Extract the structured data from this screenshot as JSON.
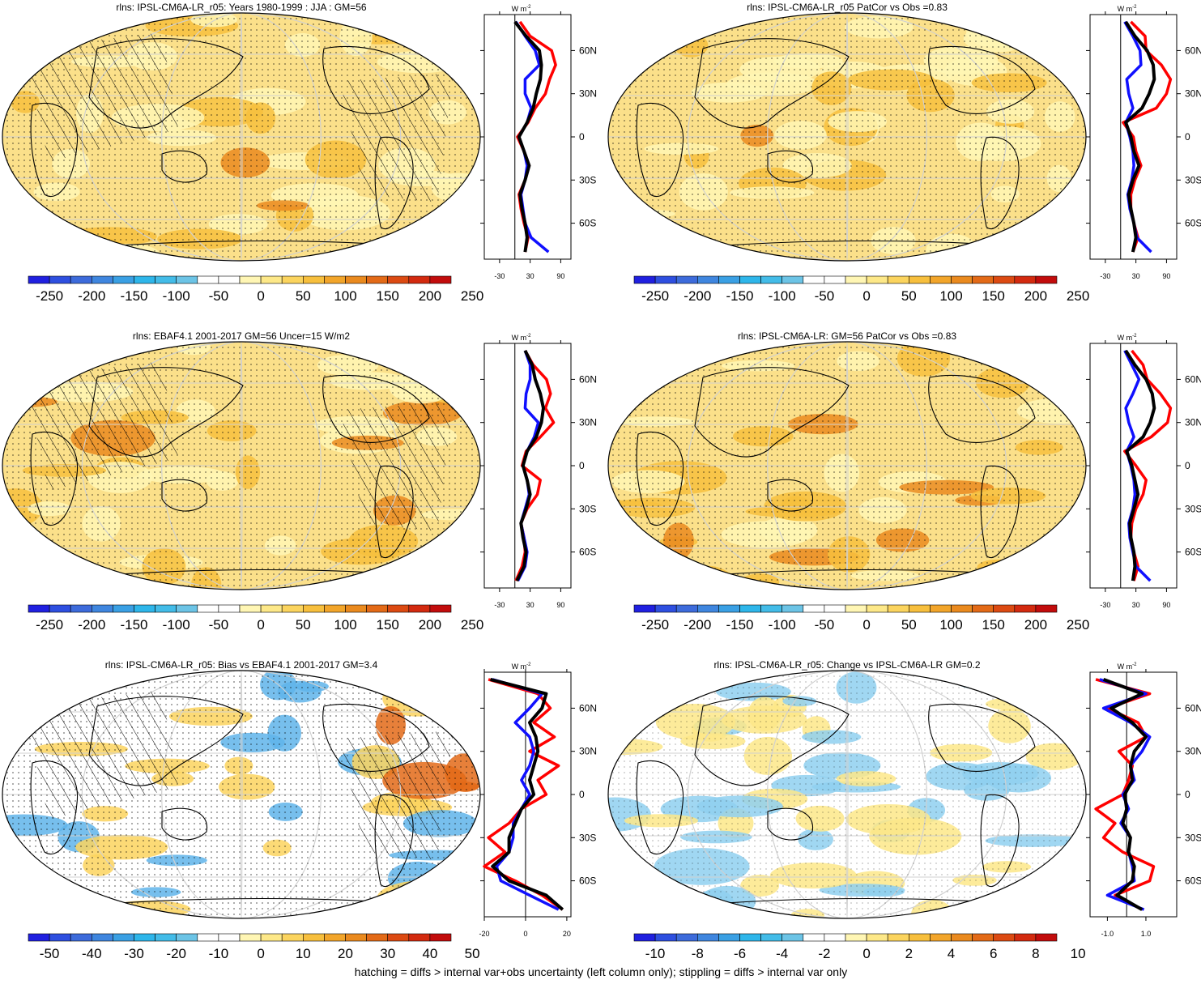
{
  "colorbar_colors": {
    "neg": [
      "#2020e0",
      "#2e4fe0",
      "#3d6bdb",
      "#3f86df",
      "#3aa0e4",
      "#2eb6ea",
      "#43bce8",
      "#6cc4e6"
    ],
    "zero": [
      "#ffffff",
      "#ffffff"
    ],
    "pos": [
      "#fff6b4",
      "#fde888",
      "#fbd45e",
      "#f7bf3d",
      "#f2a52a",
      "#ea8a1e",
      "#e36a17",
      "#dc4a12",
      "#d32a0f",
      "#c20c0c"
    ]
  },
  "map_fill": "#fbe08a",
  "line_colors": {
    "obs": "#ff0000",
    "model": "#1010ff",
    "ens": "#000000"
  },
  "footnote": "hatching = diffs > internal var+obs uncertainty (left column only); stippling = diffs > internal var only",
  "profile_unit": "W m",
  "profile_unit_exp": "-2",
  "lat_labels": [
    "60N",
    "30N",
    "0",
    "30S",
    "60S"
  ],
  "chart_data": [
    {
      "type": "heatmap",
      "title": "rlns: IPSL-CM6A-LR_r05: Years 1980-1999 : JJA : GM=56",
      "colorbar_labels": [
        "-250",
        "-200",
        "-150",
        "-100",
        "-50",
        "0",
        "50",
        "100",
        "150",
        "200",
        "250"
      ],
      "hatched": true,
      "profile": {
        "xticks": [
          "-30",
          "30",
          "90"
        ],
        "xlim": [
          -60,
          110
        ],
        "lat": [
          80,
          70,
          60,
          50,
          40,
          30,
          20,
          10,
          0,
          -10,
          -20,
          -30,
          -40,
          -50,
          -60,
          -70,
          -80
        ],
        "series": [
          {
            "color": "red",
            "values": [
              10,
              30,
              72,
              80,
              68,
              60,
              40,
              26,
              5,
              18,
              28,
              20,
              8,
              12,
              18,
              26,
              20
            ]
          },
          {
            "color": "blue",
            "values": [
              2,
              20,
              40,
              48,
              20,
              20,
              32,
              24,
              8,
              18,
              24,
              20,
              12,
              16,
              20,
              32,
              66
            ]
          },
          {
            "color": "black",
            "values": [
              0,
              22,
              48,
              52,
              50,
              42,
              36,
              24,
              8,
              18,
              28,
              20,
              10,
              14,
              20,
              24,
              20
            ]
          }
        ]
      }
    },
    {
      "type": "heatmap",
      "title": "rlns: IPSL-CM6A-LR_r05 PatCor vs Obs =0.83",
      "colorbar_labels": [
        "-250",
        "-200",
        "-150",
        "-100",
        "-50",
        "0",
        "50",
        "100",
        "150",
        "200",
        "250"
      ],
      "hatched": false,
      "profile": {
        "xticks": [
          "-30",
          "30",
          "90"
        ],
        "xlim": [
          -60,
          110
        ],
        "lat": [
          80,
          70,
          60,
          50,
          40,
          30,
          20,
          10,
          0,
          -10,
          -20,
          -30,
          -40,
          -50,
          -60,
          -70,
          -80
        ],
        "series": [
          {
            "color": "red",
            "values": [
              20,
              48,
              50,
              80,
              98,
              90,
              70,
              5,
              25,
              30,
              40,
              28,
              20,
              20,
              26,
              34,
              24
            ]
          },
          {
            "color": "blue",
            "values": [
              8,
              24,
              38,
              40,
              12,
              16,
              24,
              10,
              18,
              24,
              26,
              22,
              14,
              18,
              26,
              32,
              60
            ]
          },
          {
            "color": "black",
            "values": [
              10,
              28,
              52,
              64,
              66,
              56,
              42,
              10,
              20,
              26,
              36,
              24,
              16,
              20,
              26,
              30,
              24
            ]
          }
        ]
      }
    },
    {
      "type": "heatmap",
      "title": "rlns: EBAF4.1 2001-2017 GM=56 Uncer=15 W/m2",
      "colorbar_labels": [
        "-250",
        "-200",
        "-150",
        "-100",
        "-50",
        "0",
        "50",
        "100",
        "150",
        "200",
        "250"
      ],
      "hatched": true,
      "profile": {
        "xticks": [
          "-30",
          "30",
          "90"
        ],
        "xlim": [
          -60,
          110
        ],
        "lat": [
          80,
          70,
          60,
          50,
          40,
          30,
          20,
          10,
          0,
          -10,
          -20,
          -30,
          -40,
          -50,
          -60,
          -70,
          -80
        ],
        "series": [
          {
            "color": "red",
            "values": [
              20,
              36,
              62,
              70,
              60,
              76,
              50,
              22,
              14,
              50,
              44,
              24,
              12,
              18,
              20,
              14,
              2
            ]
          },
          {
            "color": "blue",
            "values": [
              20,
              30,
              30,
              22,
              20,
              46,
              38,
              24,
              16,
              24,
              28,
              20,
              12,
              18,
              24,
              20,
              6
            ]
          },
          {
            "color": "black",
            "values": [
              20,
              34,
              40,
              50,
              56,
              52,
              42,
              24,
              16,
              24,
              30,
              22,
              12,
              16,
              22,
              18,
              4
            ]
          }
        ]
      }
    },
    {
      "type": "heatmap",
      "title": "rlns: IPSL-CM6A-LR: GM=56 PatCor vs Obs =0.83",
      "colorbar_labels": [
        "-250",
        "-200",
        "-150",
        "-100",
        "-50",
        "0",
        "50",
        "100",
        "150",
        "200",
        "250"
      ],
      "hatched": false,
      "profile": {
        "xticks": [
          "-30",
          "30",
          "90"
        ],
        "xlim": [
          -60,
          110
        ],
        "lat": [
          80,
          70,
          60,
          50,
          40,
          30,
          20,
          10,
          0,
          -10,
          -20,
          -30,
          -40,
          -50,
          -60,
          -70,
          -80
        ],
        "series": [
          {
            "color": "red",
            "values": [
              22,
              44,
              52,
              78,
              98,
              92,
              60,
              8,
              30,
              50,
              44,
              30,
              22,
              20,
              26,
              34,
              26
            ]
          },
          {
            "color": "blue",
            "values": [
              8,
              22,
              36,
              24,
              10,
              16,
              26,
              12,
              20,
              26,
              28,
              24,
              16,
              18,
              24,
              30,
              58
            ]
          },
          {
            "color": "black",
            "values": [
              10,
              28,
              50,
              62,
              66,
              58,
              44,
              12,
              22,
              28,
              34,
              26,
              18,
              20,
              26,
              28,
              24
            ]
          }
        ]
      }
    },
    {
      "type": "heatmap",
      "title": "rlns: IPSL-CM6A-LR_r05: Bias vs EBAF4.1 2001-2017 GM=3.4",
      "colorbar_labels": [
        "-50",
        "-40",
        "-30",
        "-20",
        "-10",
        "0",
        "10",
        "20",
        "30",
        "40",
        "50"
      ],
      "hatched": true,
      "profile": {
        "xticks": [
          "-20",
          "0",
          "20"
        ],
        "xlim": [
          -20,
          22
        ],
        "lat": [
          80,
          70,
          60,
          50,
          40,
          30,
          20,
          10,
          0,
          -10,
          -20,
          -30,
          -40,
          -50,
          -60,
          -70,
          -80
        ],
        "series": [
          {
            "color": "red",
            "values": [
              -18,
              6,
              12,
              4,
              14,
              2,
              16,
              6,
              10,
              -2,
              -8,
              -18,
              -10,
              -20,
              -5,
              8,
              18
            ]
          },
          {
            "color": "blue",
            "values": [
              -16,
              8,
              2,
              -5,
              2,
              4,
              2,
              -2,
              2,
              -2,
              -6,
              -6,
              -8,
              -14,
              -12,
              2,
              16
            ]
          },
          {
            "color": "black",
            "values": [
              -17,
              10,
              8,
              2,
              5,
              6,
              4,
              2,
              4,
              -2,
              -5,
              -8,
              -8,
              -16,
              -8,
              10,
              18
            ]
          }
        ]
      }
    },
    {
      "type": "heatmap",
      "title": "rlns: IPSL-CM6A-LR_r05: Change vs IPSL-CM6A-LR GM=0.2",
      "colorbar_labels": [
        "-10",
        "-8",
        "-6",
        "-4",
        "-2",
        "0",
        "2",
        "4",
        "6",
        "8",
        "10"
      ],
      "hatched": false,
      "profile": {
        "xticks": [
          "-1.0",
          "1.0"
        ],
        "xlim": [
          -1.9,
          2.6
        ],
        "lat": [
          80,
          70,
          60,
          50,
          40,
          30,
          20,
          10,
          0,
          -10,
          -20,
          -30,
          -40,
          -50,
          -60,
          -70,
          -80
        ],
        "series": [
          {
            "color": "red",
            "values": [
              -1.6,
              1.2,
              -1.0,
              0.6,
              1.0,
              -0.4,
              0.3,
              0.1,
              -0.2,
              -1.6,
              -0.6,
              -1.2,
              -0.2,
              1.4,
              1.2,
              -0.6,
              0.8
            ]
          },
          {
            "color": "blue",
            "values": [
              -1.4,
              1.0,
              -1.2,
              0.2,
              1.2,
              0.8,
              0.2,
              0.4,
              -0.2,
              0.1,
              -0.3,
              0.2,
              0.1,
              0.3,
              0.4,
              -1.0,
              0.9
            ]
          },
          {
            "color": "black",
            "values": [
              -1.2,
              0.8,
              -0.8,
              0.3,
              1.0,
              0.4,
              0.2,
              0.3,
              -0.1,
              0.0,
              -0.2,
              0.2,
              0.1,
              0.4,
              0.3,
              -0.5,
              0.8
            ]
          }
        ]
      }
    }
  ]
}
